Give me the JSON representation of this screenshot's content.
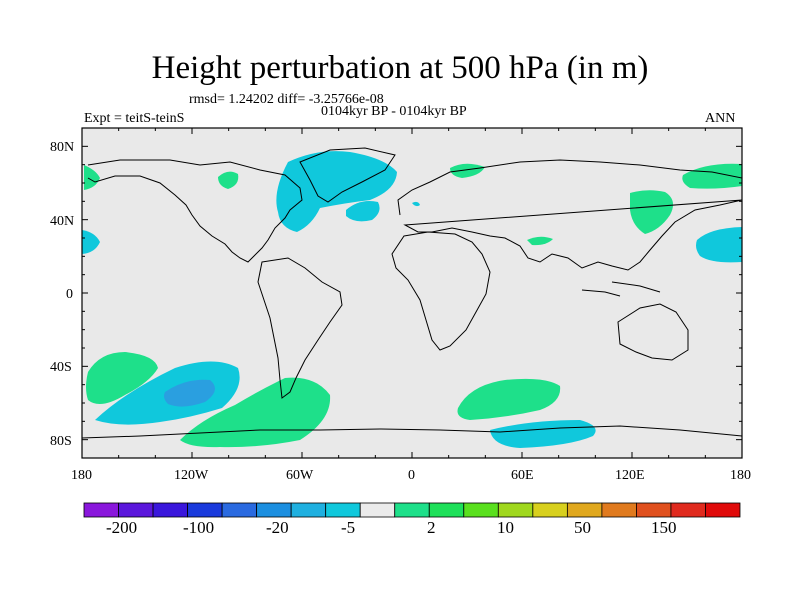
{
  "title": "Height perturbation at 500 hPa (in m)",
  "stats": "rmsd= 1.24202 diff= -3.25766e-08",
  "expt_label": "Expt = teitS-teinS",
  "period_label": "0104kyr BP - 0104kyr BP",
  "season_label": "ANN",
  "lat_ticks": [
    "80N",
    "40N",
    "0",
    "40S",
    "80S"
  ],
  "lon_ticks": [
    "180",
    "120W",
    "60W",
    "0",
    "60E",
    "120E",
    "180"
  ],
  "colorbar": {
    "labels": [
      "-200",
      "-100",
      "-20",
      "-5",
      "2",
      "10",
      "50",
      "150"
    ],
    "colors": [
      "#8a17dc",
      "#5b17dc",
      "#3a17dc",
      "#1a3adc",
      "#2a6ae0",
      "#1c8fe0",
      "#1fb0e0",
      "#10c8dc",
      "#ebebeb",
      "#1ee08a",
      "#1ee05a",
      "#5ae01e",
      "#a0d81e",
      "#d8d01e",
      "#e0a81e",
      "#e07a1e",
      "#e0501e",
      "#e02a1e",
      "#e00a0a"
    ]
  },
  "chart_data": {
    "type": "map",
    "variable": "Height perturbation at 500 hPa",
    "units": "m",
    "lon_range": [
      -180,
      180
    ],
    "lat_range": [
      -90,
      90
    ],
    "anomaly_regions": [
      {
        "name": "North Atlantic / Greenland",
        "level": "-5"
      },
      {
        "name": "North Pacific East",
        "level": "-5"
      },
      {
        "name": "Southeast Pacific",
        "level": "-20"
      },
      {
        "name": "Southern Ocean south of Africa/India",
        "level": "-5"
      },
      {
        "name": "Southern Ocean Atlantic sector",
        "level": "2"
      },
      {
        "name": "South Atlantic",
        "level": "2"
      },
      {
        "name": "Northwest Pacific / Japan",
        "level": "2"
      },
      {
        "name": "Eastern Siberia",
        "level": "2"
      }
    ]
  }
}
